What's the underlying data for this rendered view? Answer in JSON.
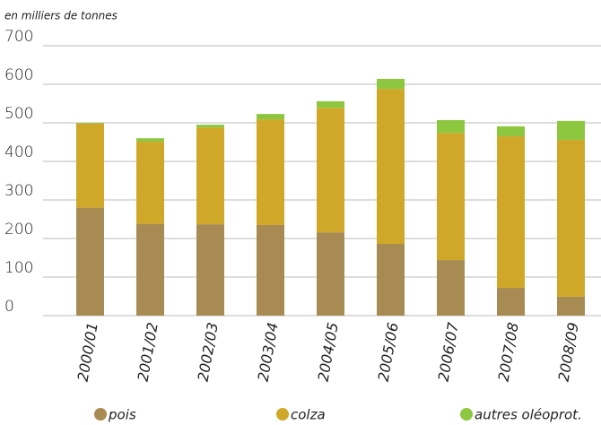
{
  "chart_data": {
    "type": "stacked_bar",
    "y_label": "en milliers de tonnes",
    "categories": [
      "2000/01",
      "2001/02",
      "2002/03",
      "2003/04",
      "2004/05",
      "2005/06",
      "2006/07",
      "2007/08",
      "2008/09"
    ],
    "series": [
      {
        "name": "pois",
        "color": "#a88b52",
        "values": [
          280,
          238,
          237,
          235,
          216,
          186,
          144,
          72,
          49
        ]
      },
      {
        "name": "colza",
        "color": "#cfa82a",
        "values": [
          218,
          213,
          251,
          274,
          323,
          402,
          330,
          393,
          407
        ]
      },
      {
        "name": "autres oléoprot.",
        "color": "#8dc63f",
        "values": [
          2,
          9,
          7,
          14,
          17,
          26,
          33,
          26,
          49
        ]
      }
    ],
    "ylim": [
      0,
      700
    ],
    "yticks": [
      0,
      100,
      200,
      300,
      400,
      500,
      600,
      700
    ],
    "grid": true
  }
}
